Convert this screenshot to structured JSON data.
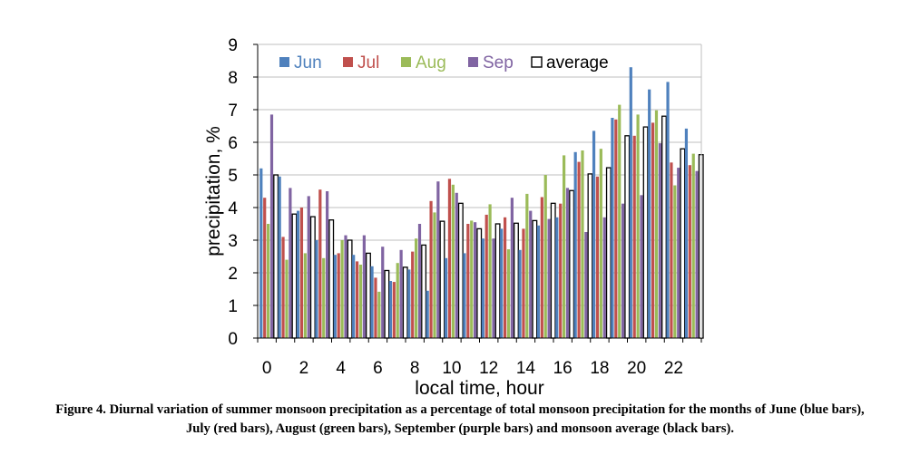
{
  "chart_data": {
    "type": "bar",
    "xlabel": "local time, hour",
    "ylabel": "precipitation, %",
    "ylim": [
      0,
      9
    ],
    "yticks": [
      0,
      1,
      2,
      3,
      4,
      5,
      6,
      7,
      8,
      9
    ],
    "xtick_labels": [
      "0",
      "2",
      "4",
      "6",
      "8",
      "10",
      "12",
      "14",
      "16",
      "18",
      "20",
      "22"
    ],
    "categories": [
      0,
      1,
      2,
      3,
      4,
      5,
      6,
      7,
      8,
      9,
      10,
      11,
      12,
      13,
      14,
      15,
      16,
      17,
      18,
      19,
      20,
      21,
      22,
      23
    ],
    "legend_position": "top-left",
    "series": [
      {
        "name": "Jun",
        "color": "#4F81BD",
        "values": [
          5.2,
          4.95,
          3.9,
          3.0,
          2.55,
          2.55,
          2.2,
          1.75,
          2.1,
          1.45,
          2.45,
          2.6,
          3.05,
          3.35,
          2.7,
          3.45,
          3.7,
          5.7,
          6.35,
          6.75,
          8.3,
          7.62,
          7.85,
          6.42
        ]
      },
      {
        "name": "Jul",
        "color": "#C0504D",
        "values": [
          4.3,
          3.1,
          4.0,
          4.55,
          2.6,
          2.35,
          1.85,
          1.72,
          2.65,
          4.2,
          4.88,
          3.5,
          3.78,
          3.7,
          3.35,
          4.32,
          4.12,
          5.4,
          4.95,
          6.7,
          6.2,
          6.6,
          5.38,
          5.3
        ]
      },
      {
        "name": "Aug",
        "color": "#9BBB59",
        "values": [
          3.5,
          2.4,
          2.6,
          2.45,
          3.0,
          2.25,
          1.42,
          2.3,
          3.05,
          3.85,
          4.7,
          3.6,
          4.1,
          2.72,
          4.42,
          5.0,
          5.6,
          5.75,
          5.8,
          7.15,
          6.85,
          6.98,
          4.68,
          5.65
        ]
      },
      {
        "name": "Sep",
        "color": "#8064A2",
        "values": [
          6.85,
          4.6,
          4.35,
          4.5,
          3.15,
          3.15,
          2.8,
          2.7,
          3.5,
          4.8,
          4.45,
          3.55,
          3.05,
          4.3,
          3.9,
          3.65,
          4.6,
          3.25,
          3.7,
          4.12,
          4.38,
          5.97,
          5.22,
          5.12
        ]
      },
      {
        "name": "average",
        "color": "#000000",
        "fill": "#ffffff",
        "values": [
          5.0,
          3.8,
          3.72,
          3.62,
          3.0,
          2.6,
          2.07,
          2.17,
          2.85,
          3.58,
          4.13,
          3.35,
          3.5,
          3.52,
          3.6,
          4.13,
          4.52,
          5.03,
          5.22,
          6.2,
          6.47,
          6.8,
          5.8,
          5.62
        ]
      }
    ]
  },
  "caption": "Figure 4. Diurnal variation of summer monsoon precipitation as a percentage of total monsoon precipitation for the months of June (blue bars), July (red bars), August (green bars), September (purple bars) and monsoon average (black bars)."
}
